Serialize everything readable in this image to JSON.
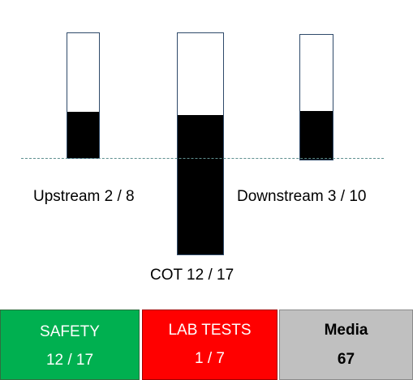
{
  "gauges": {
    "upstream": {
      "label": "Upstream 2 / 8",
      "fill_fraction": 0.37
    },
    "cot": {
      "label": "COT 12 / 17",
      "fill_fraction": 0.63
    },
    "downstream": {
      "label": "Downstream 3 / 10",
      "fill_fraction": 0.39
    }
  },
  "tiles": {
    "safety": {
      "title": "SAFETY",
      "value": "12 / 17",
      "color": "#00b050"
    },
    "lab_tests": {
      "title": "LAB TESTS",
      "value": "1 / 7",
      "color": "#ff0000"
    },
    "media": {
      "title": "Media",
      "value": "67",
      "color": "#c0c0c0"
    }
  }
}
